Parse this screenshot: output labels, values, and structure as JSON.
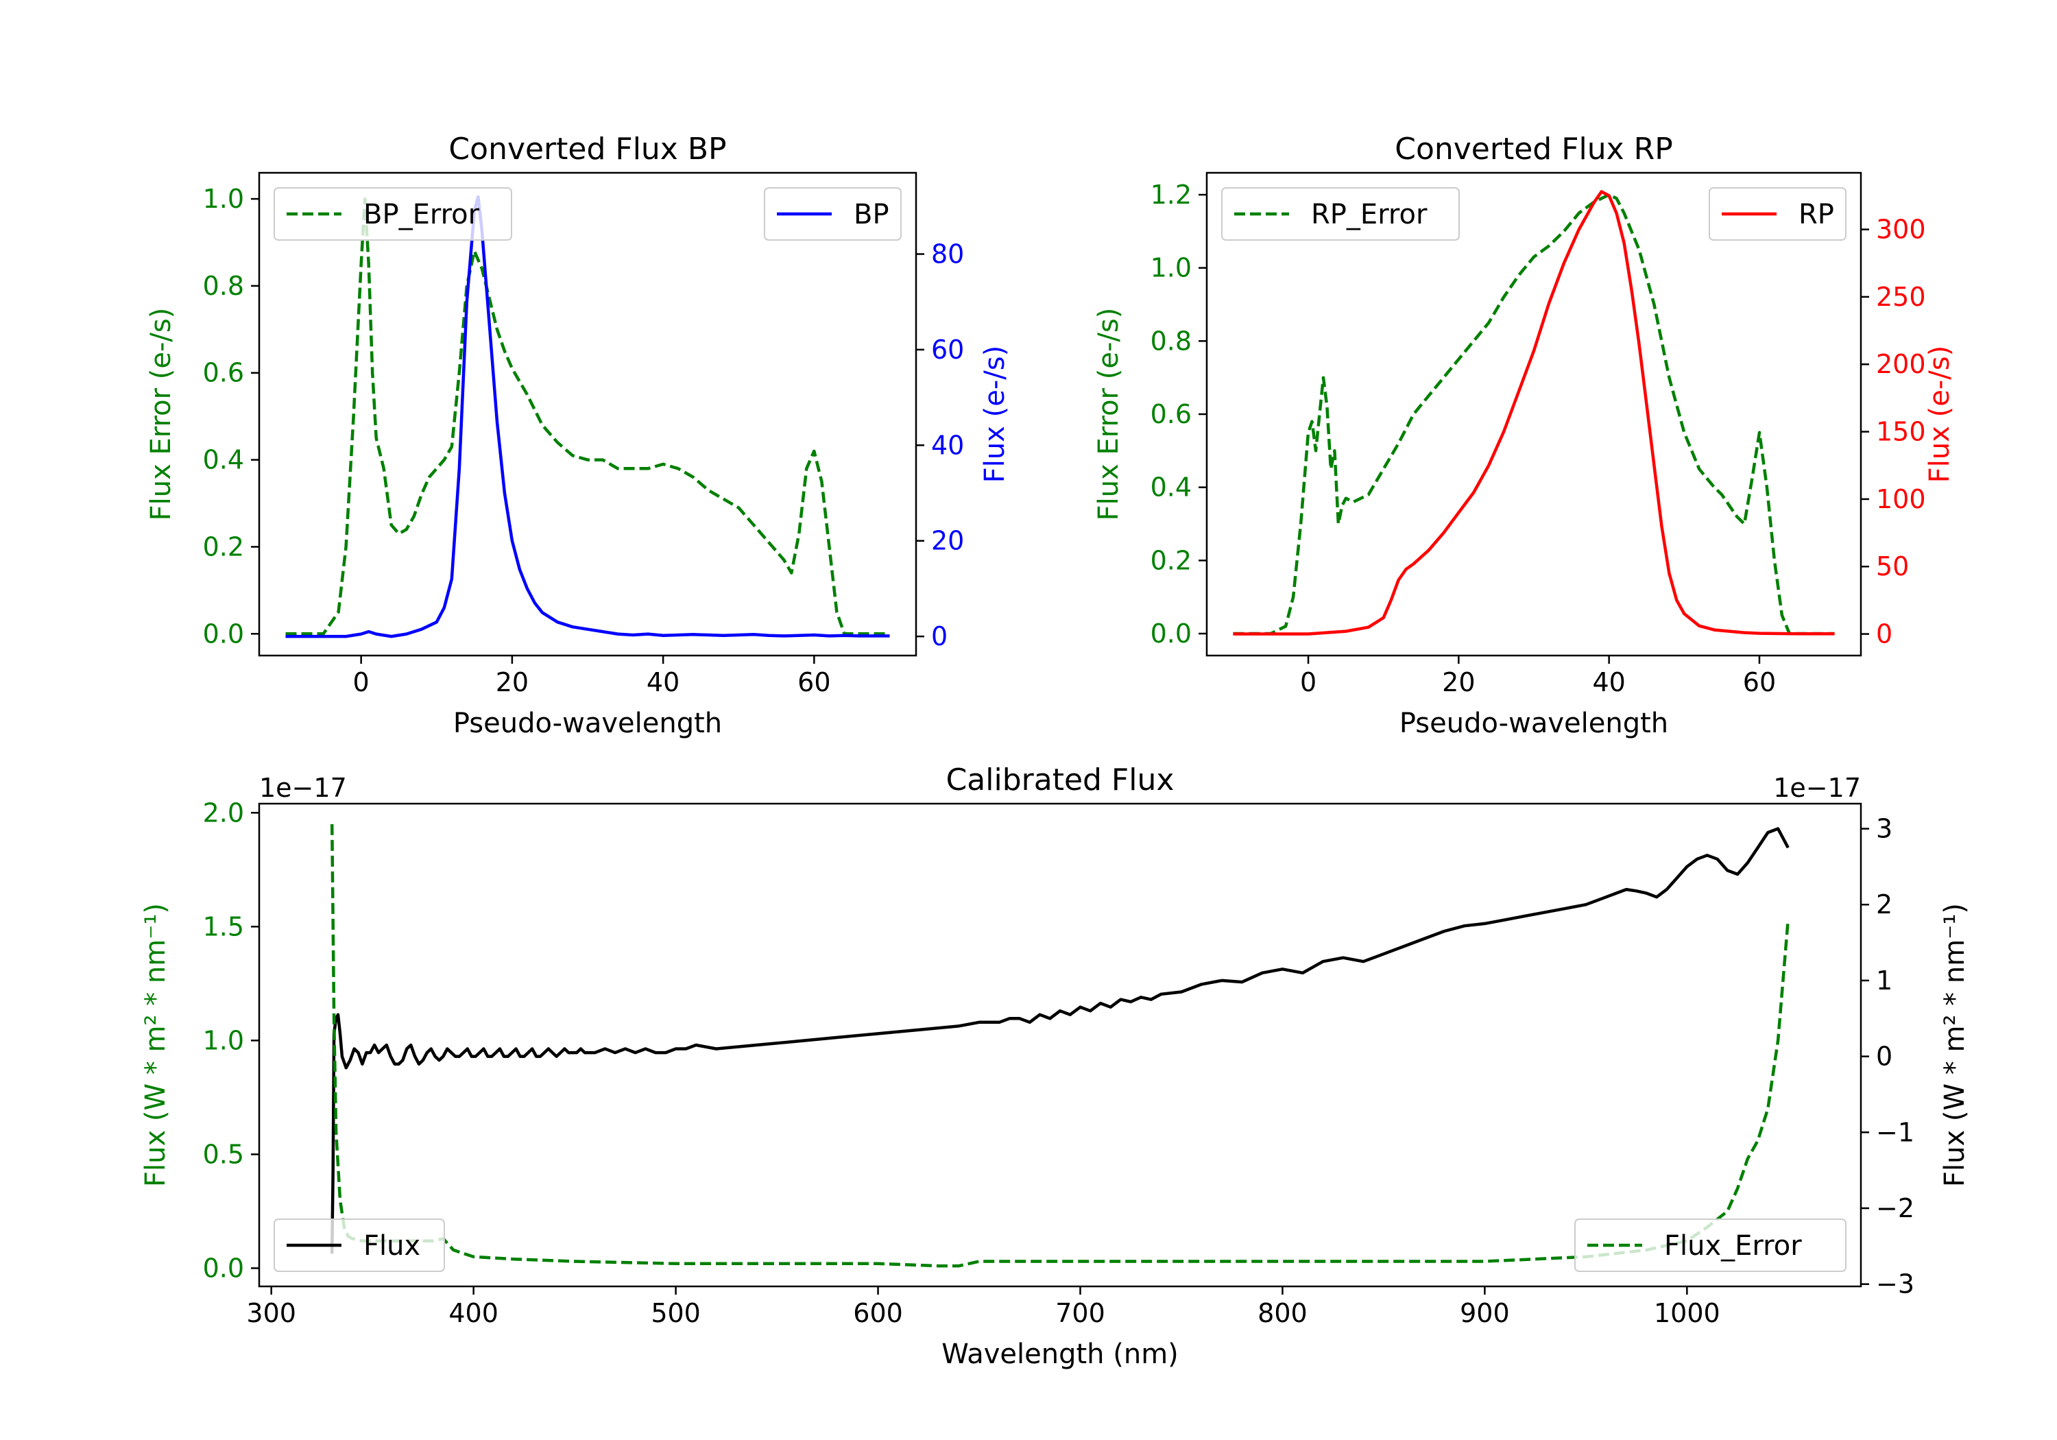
{
  "chart_data": [
    {
      "type": "line",
      "title": "Converted Flux BP",
      "xlabel": "Pseudo-wavelength",
      "ylabel_left": "Flux Error (e-/s)",
      "ylabel_right": "Flux (e-/s)",
      "xlim": [
        -13.5,
        73.5
      ],
      "ylim_left": [
        -0.05,
        1.06
      ],
      "ylim_right": [
        -4,
        97
      ],
      "xticks": [
        0,
        20,
        40,
        60
      ],
      "yticks_left": [
        0.0,
        0.2,
        0.4,
        0.6,
        0.8,
        1.0
      ],
      "yticks_right": [
        0,
        20,
        40,
        60,
        80
      ],
      "legend_left": "BP_Error",
      "legend_right": "BP",
      "colors": {
        "error": "#008000",
        "flux": "#0000ff",
        "left_axis": "#008000",
        "right_axis": "#0000ff"
      },
      "series": [
        {
          "name": "BP_Error",
          "axis": "left",
          "style": "dashed",
          "x": [
            -10,
            -5,
            -3,
            -2,
            -1,
            0,
            0.5,
            1,
            1.5,
            2,
            3,
            4,
            5,
            6,
            7,
            8,
            9,
            10,
            11,
            12,
            13,
            14,
            15,
            16,
            17,
            18,
            19,
            20,
            22,
            24,
            26,
            28,
            30,
            32,
            34,
            36,
            38,
            40,
            42,
            44,
            46,
            48,
            50,
            52,
            54,
            56,
            57,
            58,
            59,
            60,
            61,
            62,
            63,
            64,
            66,
            68,
            70
          ],
          "y": [
            0.0,
            0.0,
            0.05,
            0.2,
            0.5,
            0.85,
            1.0,
            0.85,
            0.6,
            0.45,
            0.38,
            0.25,
            0.23,
            0.24,
            0.27,
            0.32,
            0.36,
            0.38,
            0.4,
            0.43,
            0.6,
            0.8,
            0.88,
            0.84,
            0.77,
            0.7,
            0.65,
            0.61,
            0.55,
            0.48,
            0.44,
            0.41,
            0.4,
            0.4,
            0.38,
            0.38,
            0.38,
            0.39,
            0.38,
            0.36,
            0.33,
            0.31,
            0.29,
            0.25,
            0.21,
            0.17,
            0.14,
            0.23,
            0.38,
            0.42,
            0.35,
            0.2,
            0.05,
            0.0,
            0.0,
            0.0,
            0.0
          ]
        },
        {
          "name": "BP",
          "axis": "right",
          "style": "solid",
          "x": [
            -10,
            -5,
            -2,
            0,
            1,
            2,
            4,
            6,
            8,
            10,
            11,
            12,
            13,
            14,
            15,
            15.5,
            16,
            17,
            18,
            19,
            20,
            21,
            22,
            23,
            24,
            25,
            26,
            28,
            30,
            32,
            34,
            36,
            38,
            40,
            42,
            44,
            46,
            48,
            50,
            52,
            54,
            56,
            58,
            60,
            62,
            64,
            66,
            68,
            70
          ],
          "y": [
            0,
            0,
            0,
            0.5,
            1,
            0.5,
            0,
            0.5,
            1.5,
            3,
            6,
            12,
            35,
            70,
            89,
            92,
            85,
            65,
            45,
            30,
            20,
            14,
            10,
            7,
            5,
            4,
            3,
            2,
            1.5,
            1,
            0.5,
            0.3,
            0.5,
            0.2,
            0.3,
            0.4,
            0.3,
            0.2,
            0.3,
            0.4,
            0.2,
            0.1,
            0.2,
            0.3,
            0.1,
            0.2,
            0.1,
            0.1,
            0.1
          ]
        }
      ]
    },
    {
      "type": "line",
      "title": "Converted Flux RP",
      "xlabel": "Pseudo-wavelength",
      "ylabel_left": "Flux Error (e-/s)",
      "ylabel_right": "Flux (e-/s)",
      "xlim": [
        -13.5,
        73.5
      ],
      "ylim_left": [
        -0.06,
        1.26
      ],
      "ylim_right": [
        -16,
        342
      ],
      "xticks": [
        0,
        20,
        40,
        60
      ],
      "yticks_left": [
        0.0,
        0.2,
        0.4,
        0.6,
        0.8,
        1.0,
        1.2
      ],
      "yticks_right": [
        0,
        50,
        100,
        150,
        200,
        250,
        300
      ],
      "legend_left": "RP_Error",
      "legend_right": "RP",
      "colors": {
        "error": "#008000",
        "flux": "#ff0000",
        "left_axis": "#008000",
        "right_axis": "#ff0000"
      },
      "series": [
        {
          "name": "RP_Error",
          "axis": "left",
          "style": "dashed",
          "x": [
            -10,
            -5,
            -3,
            -2,
            -1,
            0,
            0.5,
            1,
            1.5,
            2,
            2.5,
            3,
            3.5,
            4,
            4.5,
            5,
            6,
            8,
            10,
            12,
            14,
            16,
            18,
            20,
            22,
            24,
            26,
            28,
            30,
            32,
            34,
            36,
            38,
            40,
            41,
            42,
            44,
            46,
            48,
            50,
            52,
            54,
            55,
            56,
            57,
            58,
            59,
            60,
            61,
            62,
            63,
            64,
            66,
            68,
            70
          ],
          "y": [
            0.0,
            0.0,
            0.02,
            0.1,
            0.3,
            0.55,
            0.58,
            0.5,
            0.6,
            0.7,
            0.62,
            0.45,
            0.5,
            0.3,
            0.35,
            0.37,
            0.36,
            0.38,
            0.45,
            0.52,
            0.6,
            0.65,
            0.7,
            0.75,
            0.8,
            0.85,
            0.92,
            0.98,
            1.03,
            1.06,
            1.1,
            1.15,
            1.18,
            1.2,
            1.19,
            1.15,
            1.05,
            0.9,
            0.7,
            0.55,
            0.45,
            0.4,
            0.38,
            0.35,
            0.32,
            0.3,
            0.42,
            0.55,
            0.4,
            0.2,
            0.05,
            0.0,
            0.0,
            0.0,
            0.0
          ]
        },
        {
          "name": "RP",
          "axis": "right",
          "style": "solid",
          "x": [
            -10,
            -5,
            0,
            5,
            8,
            10,
            11,
            12,
            13,
            14,
            16,
            18,
            20,
            22,
            24,
            26,
            28,
            30,
            32,
            34,
            36,
            38,
            39,
            40,
            41,
            42,
            43,
            44,
            45,
            46,
            47,
            48,
            49,
            50,
            52,
            54,
            56,
            58,
            60,
            62,
            64,
            66,
            68,
            70
          ],
          "y": [
            0,
            0,
            0,
            2,
            5,
            12,
            25,
            40,
            48,
            52,
            62,
            75,
            90,
            105,
            125,
            150,
            180,
            210,
            245,
            275,
            300,
            320,
            328,
            325,
            312,
            290,
            255,
            215,
            170,
            125,
            80,
            45,
            25,
            15,
            6,
            3,
            2,
            1,
            0.5,
            0.3,
            0.2,
            0.1,
            0.1,
            0.1
          ]
        }
      ]
    },
    {
      "type": "line",
      "title": "Calibrated Flux",
      "xlabel": "Wavelength (nm)",
      "ylabel_left": "Flux (W * m² * nm⁻¹)",
      "ylabel_right": "Flux (W * m² * nm⁻¹)",
      "exponent_left": "1e−17",
      "exponent_right": "1e−17",
      "xlim": [
        294,
        1086
      ],
      "ylim_left": [
        -0.08,
        2.04
      ],
      "ylim_right": [
        -3.03,
        3.33
      ],
      "xticks": [
        300,
        400,
        500,
        600,
        700,
        800,
        900,
        1000
      ],
      "yticks_left": [
        0.0,
        0.5,
        1.0,
        1.5,
        2.0
      ],
      "yticks_right": [
        -3,
        -2,
        -1,
        0,
        1,
        2,
        3
      ],
      "legend_left": "Flux",
      "legend_right": "Flux_Error",
      "colors": {
        "error": "#008000",
        "flux": "#000000",
        "left_axis": "#008000",
        "right_axis": "#000000"
      },
      "series": [
        {
          "name": "Flux",
          "axis": "right",
          "style": "solid",
          "x": [
            330,
            330.5,
            331,
            332,
            333,
            334,
            335,
            337,
            339,
            341,
            343,
            345,
            347,
            349,
            351,
            353,
            355,
            357,
            359,
            361,
            363,
            365,
            367,
            369,
            371,
            373,
            375,
            377,
            379,
            381,
            383,
            385,
            387,
            389,
            391,
            393,
            395,
            397,
            399,
            401,
            403,
            405,
            407,
            409,
            411,
            413,
            415,
            417,
            419,
            421,
            423,
            425,
            427,
            429,
            431,
            433,
            435,
            437,
            439,
            441,
            443,
            445,
            447,
            449,
            451,
            453,
            455,
            460,
            465,
            470,
            475,
            480,
            485,
            490,
            495,
            500,
            505,
            510,
            520,
            540,
            560,
            580,
            600,
            620,
            640,
            650,
            660,
            665,
            670,
            675,
            680,
            685,
            690,
            695,
            700,
            705,
            710,
            715,
            720,
            725,
            730,
            735,
            740,
            750,
            760,
            770,
            780,
            790,
            800,
            810,
            820,
            830,
            840,
            850,
            860,
            870,
            880,
            890,
            900,
            910,
            920,
            930,
            940,
            950,
            960,
            965,
            970,
            975,
            980,
            985,
            990,
            995,
            1000,
            1005,
            1010,
            1015,
            1020,
            1025,
            1030,
            1035,
            1040,
            1045,
            1050
          ],
          "y": [
            -2.6,
            -1.5,
            0.3,
            0.5,
            0.55,
            0.3,
            0.0,
            -0.15,
            -0.05,
            0.1,
            0.05,
            -0.1,
            0.05,
            0.05,
            0.15,
            0.05,
            0.1,
            0.15,
            0.0,
            -0.1,
            -0.1,
            -0.05,
            0.1,
            0.15,
            0.0,
            -0.1,
            -0.05,
            0.05,
            0.1,
            0.0,
            -0.05,
            0.0,
            0.1,
            0.05,
            0.0,
            0.0,
            0.05,
            0.1,
            0.0,
            0.0,
            0.05,
            0.1,
            0.0,
            0.0,
            0.05,
            0.1,
            0.0,
            0.0,
            0.05,
            0.1,
            0.0,
            0.0,
            0.05,
            0.1,
            0.0,
            0.0,
            0.05,
            0.1,
            0.05,
            0.0,
            0.05,
            0.1,
            0.05,
            0.05,
            0.05,
            0.1,
            0.05,
            0.05,
            0.1,
            0.05,
            0.1,
            0.05,
            0.1,
            0.05,
            0.05,
            0.1,
            0.1,
            0.15,
            0.1,
            0.15,
            0.2,
            0.25,
            0.3,
            0.35,
            0.4,
            0.45,
            0.45,
            0.5,
            0.5,
            0.45,
            0.55,
            0.5,
            0.6,
            0.55,
            0.65,
            0.6,
            0.7,
            0.65,
            0.75,
            0.72,
            0.78,
            0.75,
            0.82,
            0.85,
            0.95,
            1.0,
            0.98,
            1.1,
            1.15,
            1.1,
            1.25,
            1.3,
            1.25,
            1.35,
            1.45,
            1.55,
            1.65,
            1.72,
            1.75,
            1.8,
            1.85,
            1.9,
            1.95,
            2.0,
            2.1,
            2.15,
            2.2,
            2.18,
            2.15,
            2.1,
            2.2,
            2.35,
            2.5,
            2.6,
            2.65,
            2.6,
            2.45,
            2.4,
            2.55,
            2.75,
            2.95,
            3.0,
            2.75
          ]
        },
        {
          "name": "Flux_Error",
          "axis": "left",
          "style": "dashed",
          "x": [
            330,
            331,
            332,
            334,
            336,
            338,
            340,
            345,
            350,
            360,
            370,
            380,
            385,
            390,
            400,
            420,
            450,
            500,
            550,
            600,
            630,
            640,
            650,
            700,
            750,
            800,
            850,
            900,
            950,
            980,
            1000,
            1010,
            1020,
            1025,
            1030,
            1035,
            1040,
            1045,
            1050
          ],
          "y": [
            1.95,
            1.1,
            0.6,
            0.3,
            0.18,
            0.14,
            0.13,
            0.12,
            0.12,
            0.12,
            0.12,
            0.12,
            0.13,
            0.08,
            0.05,
            0.04,
            0.03,
            0.02,
            0.02,
            0.02,
            0.01,
            0.01,
            0.03,
            0.03,
            0.03,
            0.03,
            0.03,
            0.03,
            0.05,
            0.08,
            0.12,
            0.18,
            0.25,
            0.35,
            0.48,
            0.56,
            0.7,
            1.0,
            1.53
          ]
        }
      ]
    }
  ]
}
